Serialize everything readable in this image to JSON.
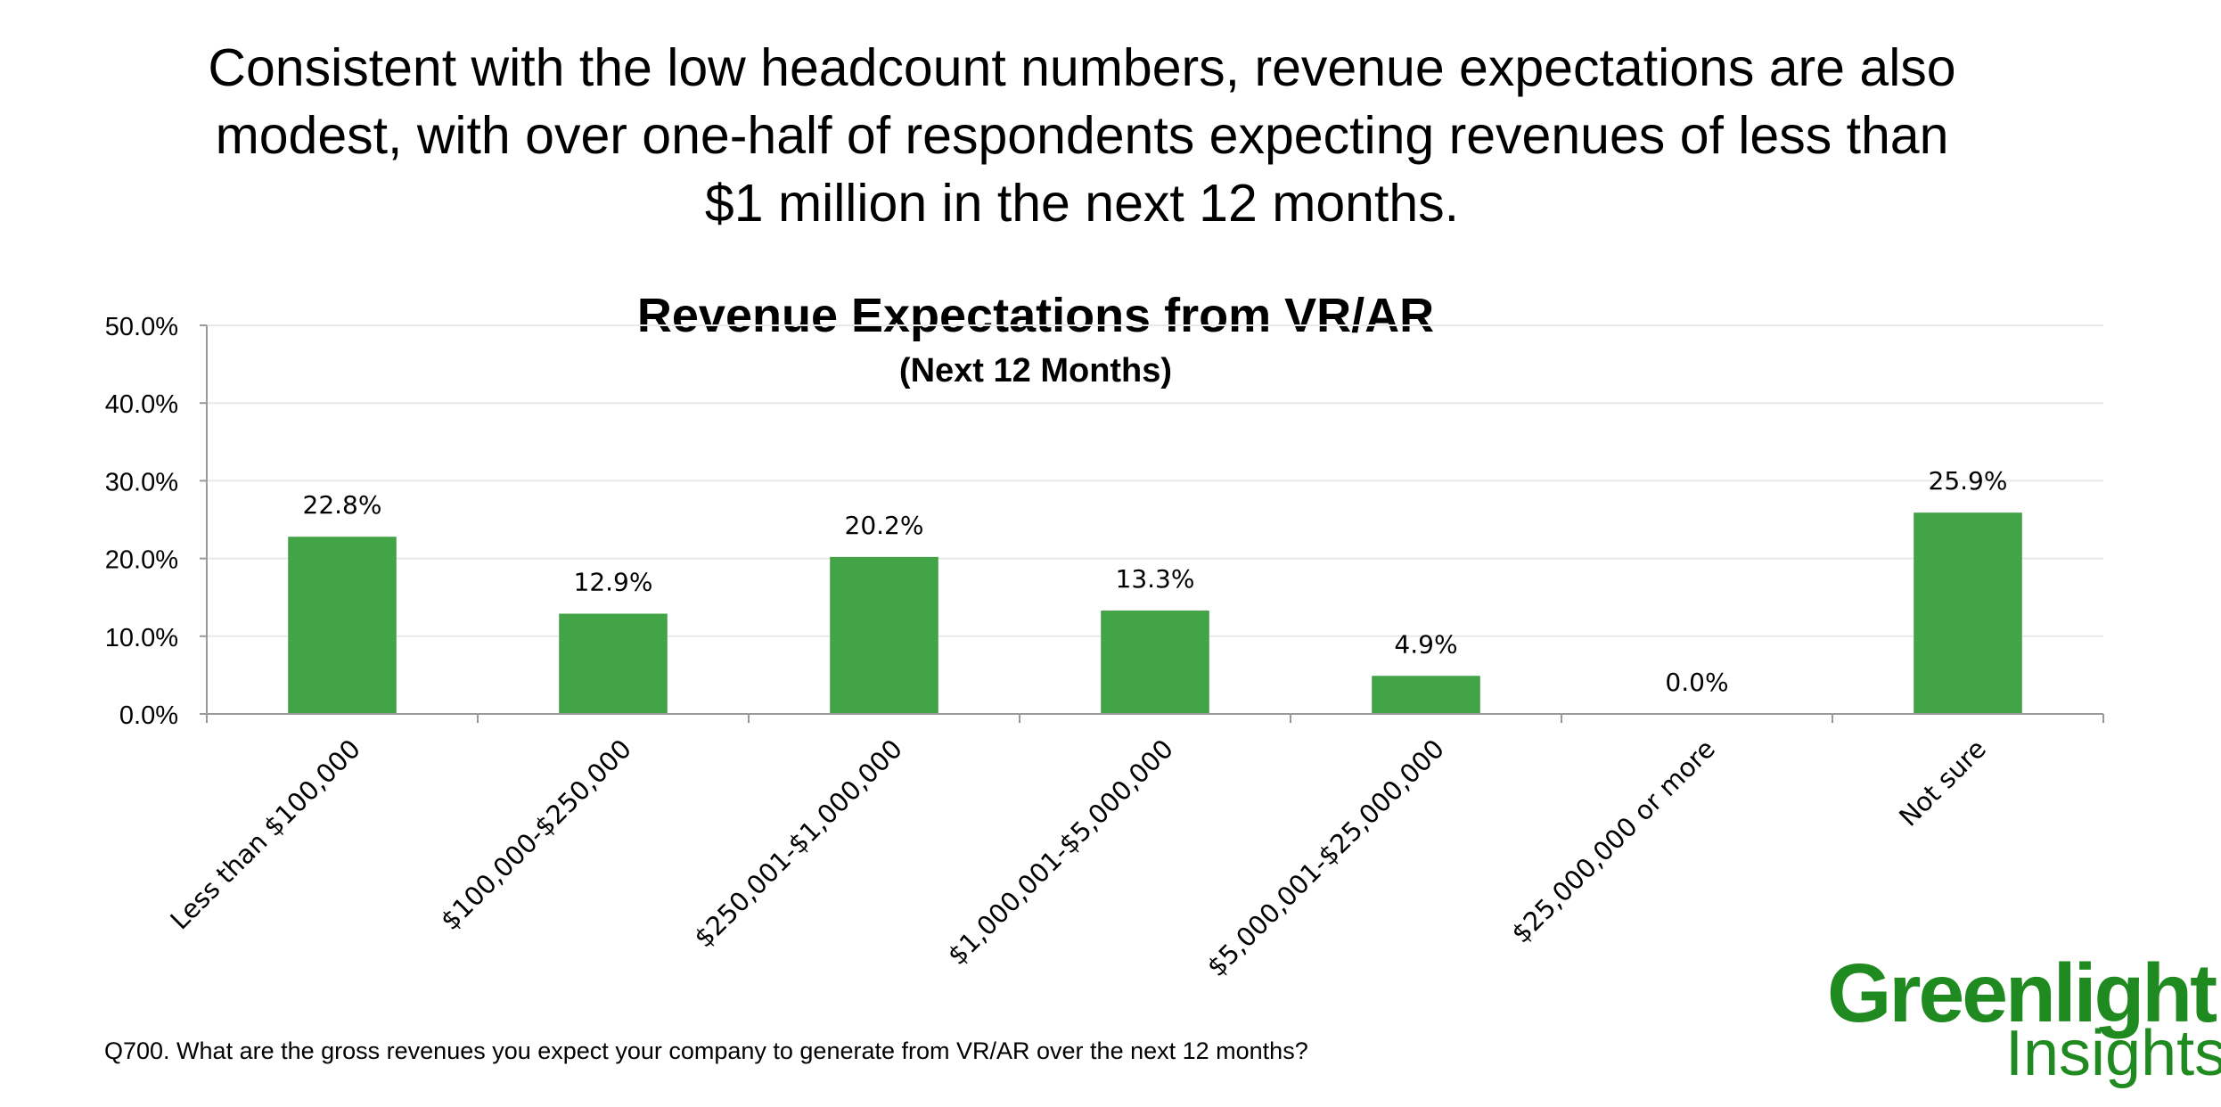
{
  "headline": {
    "lines": [
      "Consistent with the low headcount numbers, revenue expectations are also",
      "modest, with over one-half of respondents expecting revenues of less than",
      "$1 million in the next 12 months."
    ]
  },
  "footnote": "Q700. What are the gross revenues you expect your company to generate from VR/AR over the next 12 months?",
  "logo": {
    "line1": "Greenlight",
    "line2": "Insights"
  },
  "colors": {
    "bar": "#43a447",
    "brand": "#1f8a1f",
    "grid": "#e8e8e8",
    "axis": "#9a9a9a"
  },
  "chart_data": {
    "type": "bar",
    "title": "Revenue Expectations from VR/AR",
    "subtitle": "(Next 12 Months)",
    "xlabel": "",
    "ylabel": "",
    "ylim": [
      0,
      50
    ],
    "yticks": [
      0,
      10,
      20,
      30,
      40,
      50
    ],
    "ytick_labels": [
      "0.0%",
      "10.0%",
      "20.0%",
      "30.0%",
      "40.0%",
      "50.0%"
    ],
    "grid": true,
    "categories": [
      "Less than $100,000",
      "$100,000-$250,000",
      "$250,001-$1,000,000",
      "$1,000,001-$5,000,000",
      "$5,000,001-$25,000,000",
      "$25,000,000 or more",
      "Not sure"
    ],
    "values": [
      22.8,
      12.9,
      20.2,
      13.3,
      4.9,
      0.0,
      25.9
    ],
    "data_labels": [
      "22.8%",
      "12.9%",
      "20.2%",
      "13.3%",
      "4.9%",
      "0.0%",
      "25.9%"
    ]
  }
}
